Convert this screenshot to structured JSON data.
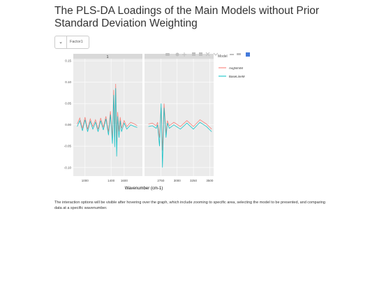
{
  "page": {
    "title": "The PLS-DA Loadings of the Main Models without Prior Standard Deviation Weighting",
    "note": "The interaction options will be visible after hovering over the graph, which include zooming to specific area, selecting the model to be presented, and comparing data at a specific wavenumber."
  },
  "selector": {
    "value": "Factor1",
    "icon": "chevron-down-icon"
  },
  "modebar": {
    "icons": [
      "camera-icon",
      "zoom-icon",
      "pan-icon",
      "zoom-in-icon",
      "zoom-out-icon",
      "autoscale-icon",
      "reset-axes-icon",
      "spike-lines-icon",
      "hover-closest-icon",
      "hover-compare-icon",
      "plotly-logo-icon"
    ],
    "accent_color": "#447adb"
  },
  "chart_data": {
    "type": "line",
    "facet_label": "1",
    "xlabel": "Wavenumber (cm-1)",
    "ylabel": "",
    "legend_title": "Model",
    "legend_position": "right",
    "grid": true,
    "panel_background": "#ebebeb",
    "panels": [
      {
        "xlim": [
          820,
          1880
        ],
        "xticks": [
          1000,
          1400,
          1600
        ]
      },
      {
        "xlim": [
          2500,
          3560
        ],
        "xticks": [
          2750,
          3000,
          3250,
          3500
        ]
      }
    ],
    "ylim": [
      -0.12,
      0.155
    ],
    "yticks": [
      0.15,
      0.1,
      0.05,
      0.0,
      -0.05,
      -0.1
    ],
    "ytick_labels": [
      "0.15",
      "0.10",
      "0.05",
      "0.00",
      "-0.05",
      "-0.10"
    ],
    "series": [
      {
        "name": "AvgNrmM",
        "color": "#f8766d",
        "points": [
          [
            880,
            0.002
          ],
          [
            920,
            0.016
          ],
          [
            960,
            -0.008
          ],
          [
            1000,
            0.018
          ],
          [
            1040,
            -0.01
          ],
          [
            1080,
            0.014
          ],
          [
            1120,
            -0.004
          ],
          [
            1160,
            0.012
          ],
          [
            1200,
            -0.01
          ],
          [
            1240,
            0.016
          ],
          [
            1280,
            -0.006
          ],
          [
            1320,
            0.02
          ],
          [
            1360,
            -0.016
          ],
          [
            1390,
            0.032
          ],
          [
            1420,
            -0.03
          ],
          [
            1440,
            0.082
          ],
          [
            1455,
            -0.028
          ],
          [
            1470,
            0.096
          ],
          [
            1485,
            -0.04
          ],
          [
            1500,
            0.03
          ],
          [
            1520,
            -0.016
          ],
          [
            1540,
            0.018
          ],
          [
            1560,
            -0.008
          ],
          [
            1600,
            0.01
          ],
          [
            1640,
            -0.004
          ],
          [
            1700,
            0.006
          ],
          [
            1760,
            0.002
          ],
          [
            1800,
            -0.002
          ],
          [
            2560,
            0.002
          ],
          [
            2620,
            0.004
          ],
          [
            2680,
            -0.002
          ],
          [
            2700,
            0.006
          ],
          [
            2730,
            -0.03
          ],
          [
            2755,
            0.04
          ],
          [
            2775,
            -0.06
          ],
          [
            2800,
            0.05
          ],
          [
            2830,
            -0.02
          ],
          [
            2850,
            0.01
          ],
          [
            2880,
            -0.002
          ],
          [
            2950,
            0.006
          ],
          [
            3050,
            -0.004
          ],
          [
            3150,
            0.01
          ],
          [
            3250,
            -0.004
          ],
          [
            3350,
            0.012
          ],
          [
            3450,
            0.002
          ],
          [
            3530,
            -0.01
          ]
        ]
      },
      {
        "name": "BaseLineM",
        "color": "#00bfc4",
        "points": [
          [
            880,
            -0.004
          ],
          [
            920,
            0.01
          ],
          [
            960,
            -0.014
          ],
          [
            1000,
            0.012
          ],
          [
            1040,
            -0.016
          ],
          [
            1080,
            0.008
          ],
          [
            1120,
            -0.01
          ],
          [
            1160,
            0.006
          ],
          [
            1200,
            -0.016
          ],
          [
            1240,
            0.01
          ],
          [
            1280,
            -0.012
          ],
          [
            1320,
            0.014
          ],
          [
            1360,
            -0.024
          ],
          [
            1390,
            0.024
          ],
          [
            1420,
            -0.044
          ],
          [
            1440,
            0.07
          ],
          [
            1455,
            -0.052
          ],
          [
            1470,
            0.086
          ],
          [
            1485,
            -0.074
          ],
          [
            1500,
            0.02
          ],
          [
            1520,
            -0.03
          ],
          [
            1540,
            0.01
          ],
          [
            1560,
            -0.016
          ],
          [
            1600,
            0.004
          ],
          [
            1640,
            -0.01
          ],
          [
            1700,
            0.0
          ],
          [
            1760,
            -0.004
          ],
          [
            1800,
            -0.006
          ],
          [
            2560,
            -0.004
          ],
          [
            2620,
            -0.002
          ],
          [
            2680,
            -0.008
          ],
          [
            2700,
            0.0
          ],
          [
            2730,
            -0.05
          ],
          [
            2755,
            0.05
          ],
          [
            2775,
            -0.1
          ],
          [
            2800,
            0.04
          ],
          [
            2830,
            -0.03
          ],
          [
            2850,
            0.004
          ],
          [
            2880,
            -0.008
          ],
          [
            2950,
            0.0
          ],
          [
            3050,
            -0.01
          ],
          [
            3150,
            0.004
          ],
          [
            3250,
            -0.01
          ],
          [
            3350,
            0.006
          ],
          [
            3450,
            -0.004
          ],
          [
            3530,
            -0.016
          ]
        ]
      }
    ]
  }
}
